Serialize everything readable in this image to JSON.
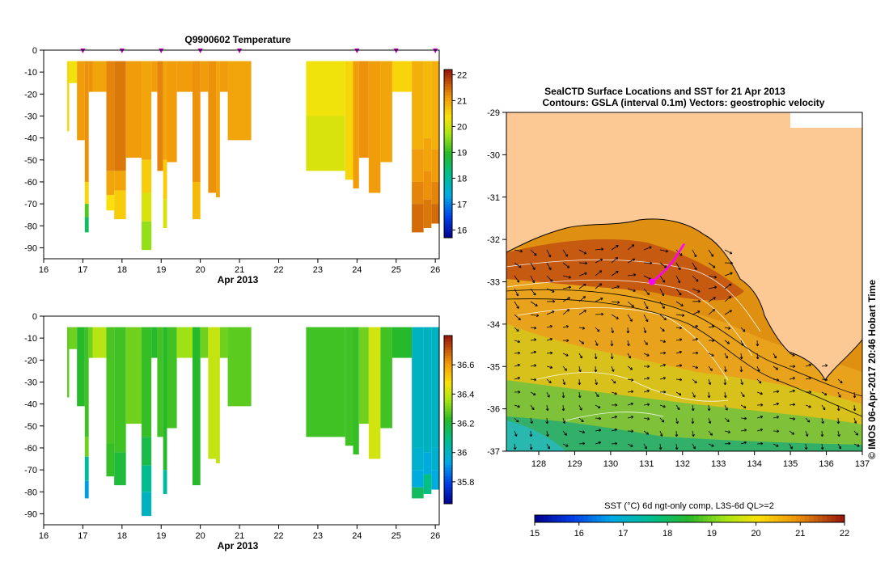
{
  "chart_data": [
    {
      "type": "heatmap",
      "title": "Q9900602  Temperature",
      "xlabel": "Apr 2013",
      "ylabel": "",
      "xlim": [
        16,
        26.1
      ],
      "ylim": [
        -95,
        0
      ],
      "x_ticks": [
        "16",
        "17",
        "18",
        "19",
        "20",
        "21",
        "22",
        "23",
        "24",
        "25",
        "26"
      ],
      "y_ticks": [
        "0",
        "-10",
        "-20",
        "-30",
        "-40",
        "-50",
        "-60",
        "-70",
        "-80",
        "-90"
      ],
      "colorbar": {
        "min": 15.7,
        "max": 22.2,
        "ticks": [
          "16",
          "17",
          "18",
          "19",
          "20",
          "21",
          "22"
        ]
      },
      "markers_x": [
        17.0,
        18.0,
        19.0,
        20.0,
        21.0,
        24.0,
        25.0,
        26.0
      ],
      "casts": [
        {
          "x": [
            16.6,
            16.65
          ],
          "depth": 37,
          "values": [
            [
              0,
              20.5
            ]
          ]
        },
        {
          "x": [
            16.65,
            16.85
          ],
          "depth": 15,
          "values": [
            [
              0,
              20.3
            ]
          ]
        },
        {
          "x": [
            16.85,
            17.05
          ],
          "depth": 41,
          "values": [
            [
              0,
              21.1
            ]
          ]
        },
        {
          "x": [
            17.05,
            17.15
          ],
          "depth": 83,
          "values": [
            [
              0,
              21.2
            ],
            [
              60,
              20.5
            ],
            [
              70,
              19.2
            ],
            [
              76,
              18.5
            ]
          ]
        },
        {
          "x": [
            17.15,
            17.25
          ],
          "depth": 19,
          "values": [
            [
              0,
              21.2
            ]
          ]
        },
        {
          "x": [
            17.25,
            17.6
          ],
          "depth": 19,
          "values": [
            [
              0,
              21.0
            ]
          ]
        },
        {
          "x": [
            17.6,
            17.8
          ],
          "depth": 73,
          "values": [
            [
              0,
              21.3
            ],
            [
              55,
              21.0
            ],
            [
              66,
              20.4
            ]
          ]
        },
        {
          "x": [
            17.8,
            18.1
          ],
          "depth": 77,
          "values": [
            [
              0,
              21.4
            ],
            [
              55,
              21.0
            ],
            [
              64,
              20.6
            ]
          ]
        },
        {
          "x": [
            18.1,
            18.5
          ],
          "depth": 49,
          "values": [
            [
              0,
              21.1
            ]
          ]
        },
        {
          "x": [
            18.5,
            18.75
          ],
          "depth": 91,
          "values": [
            [
              0,
              21.0
            ],
            [
              50,
              20.6
            ],
            [
              65,
              20.1
            ],
            [
              78,
              19.6
            ]
          ]
        },
        {
          "x": [
            18.75,
            18.9
          ],
          "depth": 19,
          "values": [
            [
              0,
              21.1
            ]
          ]
        },
        {
          "x": [
            18.9,
            19.05
          ],
          "depth": 55,
          "values": [
            [
              0,
              21.3
            ]
          ]
        },
        {
          "x": [
            19.05,
            19.15
          ],
          "depth": 81,
          "values": [
            [
              0,
              21.0
            ],
            [
              50,
              20.6
            ],
            [
              68,
              20.1
            ]
          ]
        },
        {
          "x": [
            19.15,
            19.4
          ],
          "depth": 51,
          "values": [
            [
              0,
              21.1
            ]
          ]
        },
        {
          "x": [
            19.4,
            19.8
          ],
          "depth": 19,
          "values": [
            [
              0,
              21.1
            ]
          ]
        },
        {
          "x": [
            19.8,
            20.0
          ],
          "depth": 77,
          "values": [
            [
              0,
              21.2
            ],
            [
              60,
              20.8
            ]
          ]
        },
        {
          "x": [
            20.0,
            20.2
          ],
          "depth": 19,
          "values": [
            [
              0,
              21.1
            ]
          ]
        },
        {
          "x": [
            20.2,
            20.4
          ],
          "depth": 65,
          "values": [
            [
              0,
              21.2
            ]
          ]
        },
        {
          "x": [
            20.4,
            20.5
          ],
          "depth": 67,
          "values": [
            [
              0,
              21.0
            ]
          ]
        },
        {
          "x": [
            20.5,
            20.7
          ],
          "depth": 19,
          "values": [
            [
              0,
              21.1
            ]
          ]
        },
        {
          "x": [
            20.7,
            21.3
          ],
          "depth": 41,
          "values": [
            [
              0,
              21.0
            ]
          ]
        },
        {
          "x": [
            22.7,
            23.7
          ],
          "depth": 55,
          "values": [
            [
              0,
              20.3
            ],
            [
              30,
              20.1
            ]
          ]
        },
        {
          "x": [
            23.7,
            23.9
          ],
          "depth": 59,
          "values": [
            [
              0,
              20.5
            ]
          ]
        },
        {
          "x": [
            23.9,
            24.05
          ],
          "depth": 63,
          "values": [
            [
              0,
              21.1
            ]
          ]
        },
        {
          "x": [
            24.05,
            24.3
          ],
          "depth": 49,
          "values": [
            [
              0,
              21.2
            ]
          ]
        },
        {
          "x": [
            24.3,
            24.6
          ],
          "depth": 65,
          "values": [
            [
              0,
              21.1
            ]
          ]
        },
        {
          "x": [
            24.6,
            24.9
          ],
          "depth": 51,
          "values": [
            [
              0,
              21.0
            ]
          ]
        },
        {
          "x": [
            24.9,
            25.4
          ],
          "depth": 19,
          "values": [
            [
              0,
              20.5
            ]
          ]
        },
        {
          "x": [
            25.4,
            25.7
          ],
          "depth": 83,
          "values": [
            [
              0,
              20.9
            ],
            [
              45,
              21.1
            ],
            [
              60,
              21.3
            ],
            [
              70,
              21.5
            ]
          ]
        },
        {
          "x": [
            25.7,
            25.9
          ],
          "depth": 81,
          "values": [
            [
              0,
              20.8
            ],
            [
              40,
              21.0
            ],
            [
              55,
              21.2
            ],
            [
              68,
              21.4
            ]
          ]
        },
        {
          "x": [
            25.9,
            26.1
          ],
          "depth": 79,
          "values": [
            [
              0,
              20.9
            ],
            [
              45,
              21.1
            ],
            [
              60,
              21.3
            ],
            [
              70,
              21.5
            ]
          ]
        }
      ]
    },
    {
      "type": "heatmap",
      "title": "",
      "xlabel": "Apr 2013",
      "ylabel": "",
      "xlim": [
        16,
        26.1
      ],
      "ylim": [
        -95,
        0
      ],
      "x_ticks": [
        "16",
        "17",
        "18",
        "19",
        "20",
        "21",
        "22",
        "23",
        "24",
        "25",
        "26"
      ],
      "y_ticks": [
        "0",
        "-10",
        "-20",
        "-30",
        "-40",
        "-50",
        "-60",
        "-70",
        "-80",
        "-90"
      ],
      "colorbar": {
        "min": 35.65,
        "max": 36.8,
        "ticks": [
          "35.8",
          "36",
          "36.2",
          "36.4",
          "36.6"
        ]
      },
      "casts": [
        {
          "x": [
            16.6,
            16.65
          ],
          "depth": 37,
          "values": [
            [
              0,
              36.28
            ]
          ]
        },
        {
          "x": [
            16.65,
            16.85
          ],
          "depth": 15,
          "values": [
            [
              0,
              36.3
            ]
          ]
        },
        {
          "x": [
            16.85,
            17.05
          ],
          "depth": 41,
          "values": [
            [
              0,
              36.22
            ]
          ]
        },
        {
          "x": [
            17.05,
            17.15
          ],
          "depth": 83,
          "values": [
            [
              0,
              36.25
            ],
            [
              55,
              36.3
            ],
            [
              64,
              36.05
            ],
            [
              75,
              35.92
            ]
          ]
        },
        {
          "x": [
            17.15,
            17.25
          ],
          "depth": 19,
          "values": [
            [
              0,
              36.3
            ]
          ]
        },
        {
          "x": [
            17.25,
            17.6
          ],
          "depth": 19,
          "values": [
            [
              0,
              36.38
            ]
          ]
        },
        {
          "x": [
            17.6,
            17.8
          ],
          "depth": 73,
          "values": [
            [
              0,
              36.26
            ],
            [
              58,
              36.24
            ]
          ]
        },
        {
          "x": [
            17.8,
            18.1
          ],
          "depth": 77,
          "values": [
            [
              0,
              36.25
            ],
            [
              62,
              36.2
            ]
          ]
        },
        {
          "x": [
            18.1,
            18.5
          ],
          "depth": 49,
          "values": [
            [
              0,
              36.3
            ]
          ]
        },
        {
          "x": [
            18.5,
            18.75
          ],
          "depth": 91,
          "values": [
            [
              0,
              36.24
            ],
            [
              55,
              36.18
            ],
            [
              68,
              36.08
            ],
            [
              80,
              36.0
            ]
          ]
        },
        {
          "x": [
            18.75,
            18.9
          ],
          "depth": 19,
          "values": [
            [
              0,
              36.22
            ]
          ]
        },
        {
          "x": [
            18.9,
            19.05
          ],
          "depth": 55,
          "values": [
            [
              0,
              36.25
            ]
          ]
        },
        {
          "x": [
            19.05,
            19.15
          ],
          "depth": 81,
          "values": [
            [
              0,
              36.22
            ],
            [
              70,
              36.05
            ]
          ]
        },
        {
          "x": [
            19.15,
            19.4
          ],
          "depth": 51,
          "values": [
            [
              0,
              36.25
            ]
          ]
        },
        {
          "x": [
            19.4,
            19.8
          ],
          "depth": 19,
          "values": [
            [
              0,
              36.35
            ]
          ]
        },
        {
          "x": [
            19.8,
            20.0
          ],
          "depth": 77,
          "values": [
            [
              0,
              36.22
            ]
          ]
        },
        {
          "x": [
            20.0,
            20.2
          ],
          "depth": 19,
          "values": [
            [
              0,
              36.3
            ]
          ]
        },
        {
          "x": [
            20.2,
            20.4
          ],
          "depth": 65,
          "values": [
            [
              0,
              36.4
            ]
          ]
        },
        {
          "x": [
            20.4,
            20.5
          ],
          "depth": 67,
          "values": [
            [
              0,
              36.4
            ]
          ]
        },
        {
          "x": [
            20.5,
            20.7
          ],
          "depth": 19,
          "values": [
            [
              0,
              36.3
            ]
          ]
        },
        {
          "x": [
            20.7,
            21.3
          ],
          "depth": 41,
          "values": [
            [
              0,
              36.28
            ]
          ]
        },
        {
          "x": [
            22.7,
            23.7
          ],
          "depth": 55,
          "values": [
            [
              0,
              36.25
            ]
          ]
        },
        {
          "x": [
            23.7,
            23.9
          ],
          "depth": 59,
          "values": [
            [
              0,
              36.25
            ]
          ]
        },
        {
          "x": [
            23.9,
            24.05
          ],
          "depth": 63,
          "values": [
            [
              0,
              36.24
            ]
          ]
        },
        {
          "x": [
            24.05,
            24.3
          ],
          "depth": 49,
          "values": [
            [
              0,
              36.3
            ]
          ]
        },
        {
          "x": [
            24.3,
            24.6
          ],
          "depth": 65,
          "values": [
            [
              0,
              36.42
            ]
          ]
        },
        {
          "x": [
            24.6,
            24.9
          ],
          "depth": 51,
          "values": [
            [
              0,
              36.25
            ]
          ]
        },
        {
          "x": [
            24.9,
            25.4
          ],
          "depth": 19,
          "values": [
            [
              0,
              36.22
            ]
          ]
        },
        {
          "x": [
            25.4,
            25.7
          ],
          "depth": 83,
          "values": [
            [
              0,
              36.0
            ],
            [
              60,
              35.98
            ],
            [
              70,
              35.95
            ],
            [
              78,
              36.15
            ]
          ]
        },
        {
          "x": [
            25.7,
            25.9
          ],
          "depth": 81,
          "values": [
            [
              0,
              36.0
            ],
            [
              62,
              35.95
            ],
            [
              72,
              36.1
            ]
          ]
        },
        {
          "x": [
            25.9,
            26.1
          ],
          "depth": 79,
          "values": [
            [
              0,
              36.0
            ],
            [
              60,
              35.98
            ],
            [
              70,
              35.95
            ]
          ]
        }
      ]
    },
    {
      "type": "heatmap",
      "title": "SealCTD Surface Locations and SST for 21 Apr 2013",
      "subtitle": "Contours: GSLA (interval 0.1m) Vectors: geostrophic velocity",
      "xlim": [
        127.1,
        137
      ],
      "ylim": [
        -37,
        -29
      ],
      "x_ticks": [
        "128",
        "129",
        "130",
        "131",
        "132",
        "133",
        "134",
        "135",
        "136",
        "137"
      ],
      "y_ticks": [
        "-29",
        "-30",
        "-31",
        "-32",
        "-33",
        "-34",
        "-35",
        "-36",
        "-37"
      ],
      "colorbar": {
        "min": 15,
        "max": 22,
        "ticks": [
          "15",
          "16",
          "17",
          "18",
          "19",
          "20",
          "21",
          "22"
        ],
        "label": "SST (°C) 6d ngt-only comp, L3S-6d QL>=2"
      },
      "seal_track": [
        [
          131.15,
          -33.0
        ],
        [
          131.3,
          -32.9
        ],
        [
          131.55,
          -32.7
        ],
        [
          131.75,
          -32.5
        ],
        [
          131.9,
          -32.3
        ],
        [
          132.05,
          -32.1
        ]
      ],
      "side_label": "© IMOS 06-Apr-2017 20:46 Hobart Time"
    }
  ]
}
